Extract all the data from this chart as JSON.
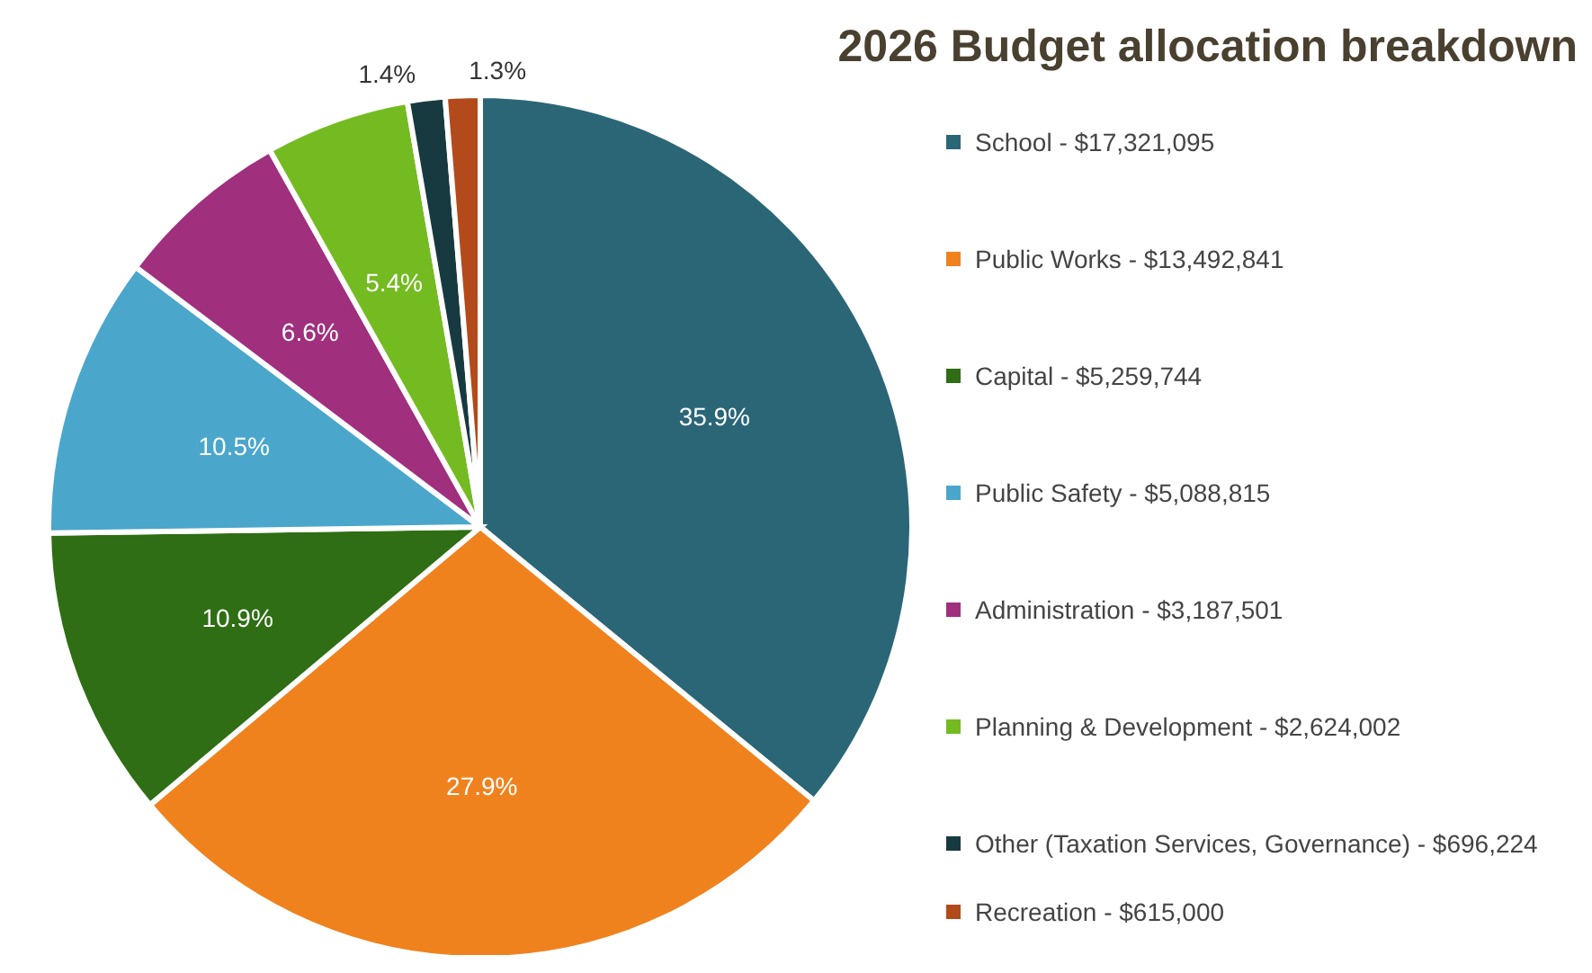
{
  "chart_data": {
    "type": "pie",
    "title": "2026 Budget allocation breakdown",
    "categories": [
      "School - $17,321,095",
      "Public Works  - $13,492,841",
      "Capital - $5,259,744",
      "Public Safety - $5,088,815",
      "Administration - $3,187,501",
      "Planning & Development - $2,624,002",
      "Other (Taxation Services, Governance) - $696,224",
      "Recreation - $615,000"
    ],
    "values": [
      35.9,
      27.9,
      10.9,
      10.5,
      6.6,
      5.4,
      1.4,
      1.3
    ],
    "value_labels": [
      "35.9%",
      "27.9%",
      "10.9%",
      "10.5%",
      "6.6%",
      "5.4%",
      "1.4%",
      "1.3%"
    ],
    "colors": [
      "#2b6677",
      "#f0821e",
      "#2f6e14",
      "#4ba6cb",
      "#a02f7e",
      "#74bb22",
      "#173a40",
      "#b34a1c"
    ],
    "legend": "right"
  }
}
